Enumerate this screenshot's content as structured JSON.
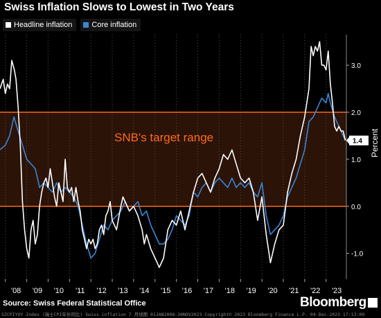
{
  "title": "Swiss Inflation Slows to Lowest in Two Years",
  "source": "Source: Swiss Federal Statistical Office",
  "brand": "Bloomberg",
  "footer": "SZCPIYOY Index (瑞士CPI年份同比) Swiss inflation 7  月线图 01JAN2008-30NOV2023  Copyright© 2023 Bloomberg Finance L.P.  04-Dec-2023 17:13:09",
  "colors": {
    "background": "#000000",
    "headline": "#ffffff",
    "core": "#3a86d4",
    "target_band": "#2b1308",
    "target_lines": "#ff6a1a",
    "annotation": "#ff6a1a",
    "grid": "#555555",
    "value_badge_bg": "#ffffff"
  },
  "chart_data": {
    "type": "line",
    "title": "Swiss Inflation Slows to Lowest in Two Years",
    "ylabel": "Percent",
    "xlim": [
      2007.75,
      2023.95
    ],
    "ylim": [
      -1.55,
      3.65
    ],
    "x_ticks": [
      "'08",
      "'09",
      "'10",
      "'11",
      "'12",
      "'13",
      "'14",
      "'15",
      "'16",
      "'17",
      "'18",
      "'19",
      "'20",
      "'21",
      "'22",
      "'23"
    ],
    "y_ticks": [
      "3.0",
      "2.0",
      "1.0",
      "0.0",
      "-1.0"
    ],
    "y_tick_values": [
      3.0,
      2.0,
      1.0,
      0.0,
      -1.0
    ],
    "target_range": [
      0.0,
      2.0
    ],
    "target_label": "SNB's target range",
    "last_value_label": "1.4",
    "last_value": 1.4,
    "grid": "vertical dotted",
    "legend_position": "top-left",
    "series": [
      {
        "name": "Headline inflation",
        "color": "#ffffff",
        "x": [
          2007.75,
          2007.9,
          2008.0,
          2008.1,
          2008.2,
          2008.3,
          2008.42,
          2008.5,
          2008.6,
          2008.7,
          2008.8,
          2008.9,
          2009.0,
          2009.1,
          2009.2,
          2009.3,
          2009.4,
          2009.5,
          2009.6,
          2009.7,
          2009.8,
          2009.9,
          2010.0,
          2010.1,
          2010.2,
          2010.3,
          2010.4,
          2010.5,
          2010.6,
          2010.7,
          2010.8,
          2010.9,
          2011.0,
          2011.1,
          2011.2,
          2011.3,
          2011.4,
          2011.5,
          2011.6,
          2011.7,
          2011.8,
          2011.9,
          2012.0,
          2012.1,
          2012.2,
          2012.3,
          2012.4,
          2012.5,
          2012.6,
          2012.7,
          2012.8,
          2012.9,
          2013.0,
          2013.2,
          2013.4,
          2013.5,
          2013.6,
          2013.8,
          2014.0,
          2014.2,
          2014.4,
          2014.5,
          2014.6,
          2014.8,
          2015.0,
          2015.1,
          2015.2,
          2015.4,
          2015.5,
          2015.6,
          2015.8,
          2016.0,
          2016.2,
          2016.4,
          2016.6,
          2016.8,
          2017.0,
          2017.2,
          2017.4,
          2017.6,
          2017.8,
          2018.0,
          2018.2,
          2018.4,
          2018.6,
          2018.8,
          2019.0,
          2019.2,
          2019.4,
          2019.6,
          2019.8,
          2020.0,
          2020.2,
          2020.4,
          2020.6,
          2020.8,
          2021.0,
          2021.2,
          2021.4,
          2021.6,
          2021.8,
          2022.0,
          2022.1,
          2022.2,
          2022.3,
          2022.4,
          2022.5,
          2022.6,
          2022.7,
          2022.8,
          2022.9,
          2023.0,
          2023.1,
          2023.2,
          2023.3,
          2023.4,
          2023.5,
          2023.6,
          2023.7,
          2023.8,
          2023.9
        ],
        "values": [
          2.5,
          2.7,
          2.4,
          2.6,
          2.5,
          3.1,
          2.9,
          2.7,
          2.1,
          1.3,
          0.1,
          -0.5,
          -0.9,
          -1.1,
          -0.5,
          -0.3,
          -0.8,
          -0.6,
          0.0,
          0.3,
          0.5,
          0.6,
          0.4,
          0.8,
          0.5,
          0.2,
          0.0,
          0.5,
          0.3,
          0.1,
          1.0,
          0.4,
          0.3,
          0.4,
          0.1,
          0.4,
          0.1,
          -0.1,
          -0.5,
          -0.7,
          -0.9,
          -0.7,
          -0.8,
          -0.7,
          -0.9,
          -0.8,
          -0.5,
          -0.4,
          -0.6,
          -0.2,
          -0.1,
          0.1,
          -0.3,
          -0.5,
          0.0,
          0.2,
          0.1,
          -0.1,
          0.0,
          -0.2,
          -0.5,
          -0.8,
          -0.6,
          -0.9,
          -1.1,
          -1.2,
          -1.3,
          -1.1,
          -0.8,
          -0.5,
          -0.3,
          -0.4,
          -0.1,
          -0.5,
          -0.1,
          0.3,
          0.6,
          0.7,
          0.5,
          0.3,
          0.6,
          0.8,
          1.1,
          1.0,
          1.2,
          0.9,
          0.6,
          0.5,
          0.6,
          0.3,
          -0.3,
          0.2,
          -0.6,
          -1.2,
          -0.8,
          -0.5,
          -0.4,
          0.3,
          0.7,
          1.0,
          1.5,
          1.9,
          2.2,
          2.5,
          3.4,
          3.2,
          3.4,
          3.3,
          3.5,
          3.0,
          3.0,
          2.9,
          3.3,
          2.6,
          2.2,
          1.7,
          1.6,
          1.7,
          1.6,
          1.6,
          1.4
        ]
      },
      {
        "name": "Core inflation",
        "color": "#3a86d4",
        "x": [
          2007.75,
          2008.0,
          2008.2,
          2008.4,
          2008.6,
          2008.8,
          2009.0,
          2009.2,
          2009.4,
          2009.6,
          2009.8,
          2010.0,
          2010.2,
          2010.4,
          2010.6,
          2010.8,
          2011.0,
          2011.2,
          2011.4,
          2011.6,
          2011.8,
          2012.0,
          2012.2,
          2012.4,
          2012.6,
          2012.8,
          2013.0,
          2013.2,
          2013.4,
          2013.6,
          2013.8,
          2014.0,
          2014.2,
          2014.4,
          2014.6,
          2014.8,
          2015.0,
          2015.2,
          2015.4,
          2015.6,
          2015.8,
          2016.0,
          2016.2,
          2016.4,
          2016.6,
          2016.8,
          2017.0,
          2017.2,
          2017.4,
          2017.6,
          2017.8,
          2018.0,
          2018.2,
          2018.4,
          2018.6,
          2018.8,
          2019.0,
          2019.2,
          2019.4,
          2019.6,
          2019.8,
          2020.0,
          2020.2,
          2020.4,
          2020.6,
          2020.8,
          2021.0,
          2021.2,
          2021.4,
          2021.6,
          2021.8,
          2022.0,
          2022.2,
          2022.4,
          2022.6,
          2022.8,
          2023.0,
          2023.1,
          2023.2,
          2023.4,
          2023.6,
          2023.8,
          2023.9
        ],
        "values": [
          1.2,
          1.3,
          1.5,
          1.9,
          1.6,
          1.3,
          1.0,
          0.9,
          0.8,
          0.4,
          0.5,
          0.4,
          0.3,
          0.5,
          0.3,
          0.4,
          0.3,
          0.2,
          0.0,
          -0.4,
          -0.8,
          -1.1,
          -1.0,
          -0.7,
          -0.4,
          -0.5,
          -0.3,
          -0.2,
          -0.1,
          0.1,
          -0.1,
          0.0,
          0.1,
          -0.2,
          -0.1,
          -0.4,
          -0.6,
          -0.8,
          -0.8,
          -0.7,
          -0.5,
          -0.2,
          -0.3,
          -0.4,
          -0.2,
          0.3,
          0.2,
          0.4,
          0.5,
          0.3,
          0.5,
          0.6,
          0.5,
          0.4,
          0.6,
          0.4,
          0.5,
          0.4,
          0.5,
          0.3,
          0.2,
          0.5,
          -0.2,
          -0.6,
          -0.5,
          -0.4,
          -0.2,
          0.2,
          0.4,
          0.6,
          0.9,
          1.2,
          1.8,
          1.9,
          2.1,
          2.3,
          2.2,
          2.4,
          2.2,
          1.9,
          1.7,
          1.5,
          1.4
        ]
      }
    ]
  }
}
